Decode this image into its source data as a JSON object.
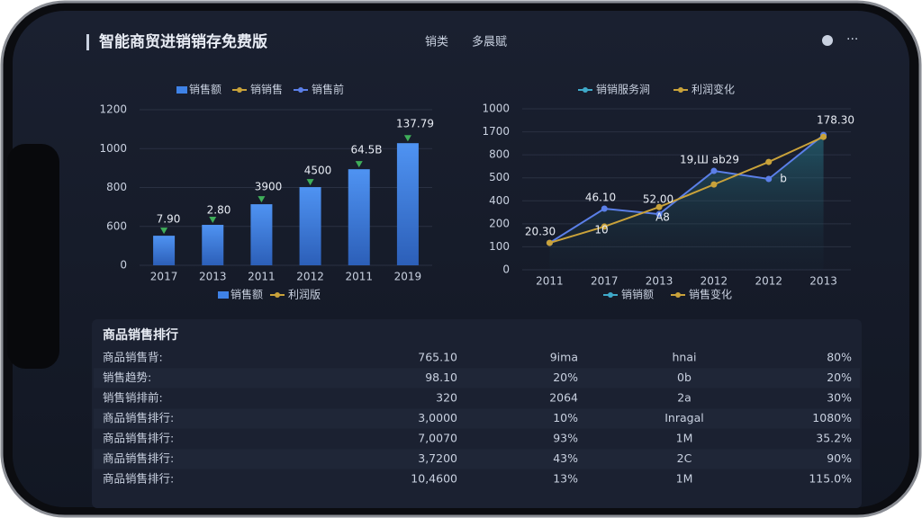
{
  "header": {
    "title": "智能商贸进销销存免费版",
    "tabs": [
      "销类",
      "多晨赋"
    ]
  },
  "chart_data": [
    {
      "type": "bar",
      "legend_top": [
        "销售额",
        "销销售",
        "销售前"
      ],
      "legend_bottom": [
        "销售额",
        "利润版"
      ],
      "categories": [
        "2017",
        "2013",
        "2011",
        "2012",
        "2011",
        "2019"
      ],
      "values": [
        0.76,
        1.04,
        1.57,
        2.01,
        2.47,
        3.14
      ],
      "color": "#3f82e6",
      "ylim": [
        0,
        4
      ],
      "yticks": [
        {
          "value": 0,
          "label": "0"
        },
        {
          "value": 1,
          "label": "600"
        },
        {
          "value": 2,
          "label": "800"
        },
        {
          "value": 3,
          "label": "1000"
        },
        {
          "value": 4,
          "label": "1200"
        }
      ],
      "annotations": [
        "7.90",
        "2.80",
        "3900",
        "4500",
        "64.5B",
        "137.79"
      ]
    },
    {
      "type": "line",
      "legend_top": [
        "销销服务涧",
        "利润变化"
      ],
      "legend_bottom": [
        "销销额",
        "销售变化"
      ],
      "categories": [
        "2011",
        "2017",
        "2013",
        "2012",
        "2012",
        "2013"
      ],
      "series": [
        {
          "color": "#5b7fe8",
          "values": [
            1.17,
            2.66,
            2.42,
            4.3,
            3.95,
            5.86
          ]
        },
        {
          "color": "#c9a23a",
          "values": [
            1.17,
            1.88,
            2.73,
            3.71,
            4.69,
            5.78
          ]
        }
      ],
      "ylim": [
        0,
        7
      ],
      "yticks": [
        {
          "value": 0,
          "label": "0"
        },
        {
          "value": 1,
          "label": "100"
        },
        {
          "value": 2,
          "label": "200"
        },
        {
          "value": 3,
          "label": "400"
        },
        {
          "value": 4,
          "label": "500"
        },
        {
          "value": 5,
          "label": "800"
        },
        {
          "value": 6,
          "label": "1700"
        },
        {
          "value": 7,
          "label": "1000"
        }
      ],
      "annotations": [
        "20.30",
        "46.10",
        "52.00",
        "19,Ш ab29",
        "178.30",
        "10",
        "A8",
        "b"
      ]
    }
  ],
  "table": {
    "title": "商品销售排行",
    "rows": [
      [
        "商品销售背:",
        "765.10",
        "9ima",
        "hnai",
        "80%"
      ],
      [
        "销售趋势:",
        "98.10",
        "20%",
        "0b",
        "20%"
      ],
      [
        "销售销排前:",
        "320",
        "2064",
        "2a",
        "30%"
      ],
      [
        "商品销售排行:",
        "3,0000",
        "10%",
        "Inragal",
        "1080%"
      ],
      [
        "商品销售排行:",
        "7,0070",
        "93%",
        "1M",
        "35.2%"
      ],
      [
        "商品销售排行:",
        "3,7200",
        "43%",
        "2C",
        "90%"
      ],
      [
        "商品销售排行:",
        "10,4600",
        "13%",
        "1M",
        "115.0%"
      ]
    ]
  }
}
